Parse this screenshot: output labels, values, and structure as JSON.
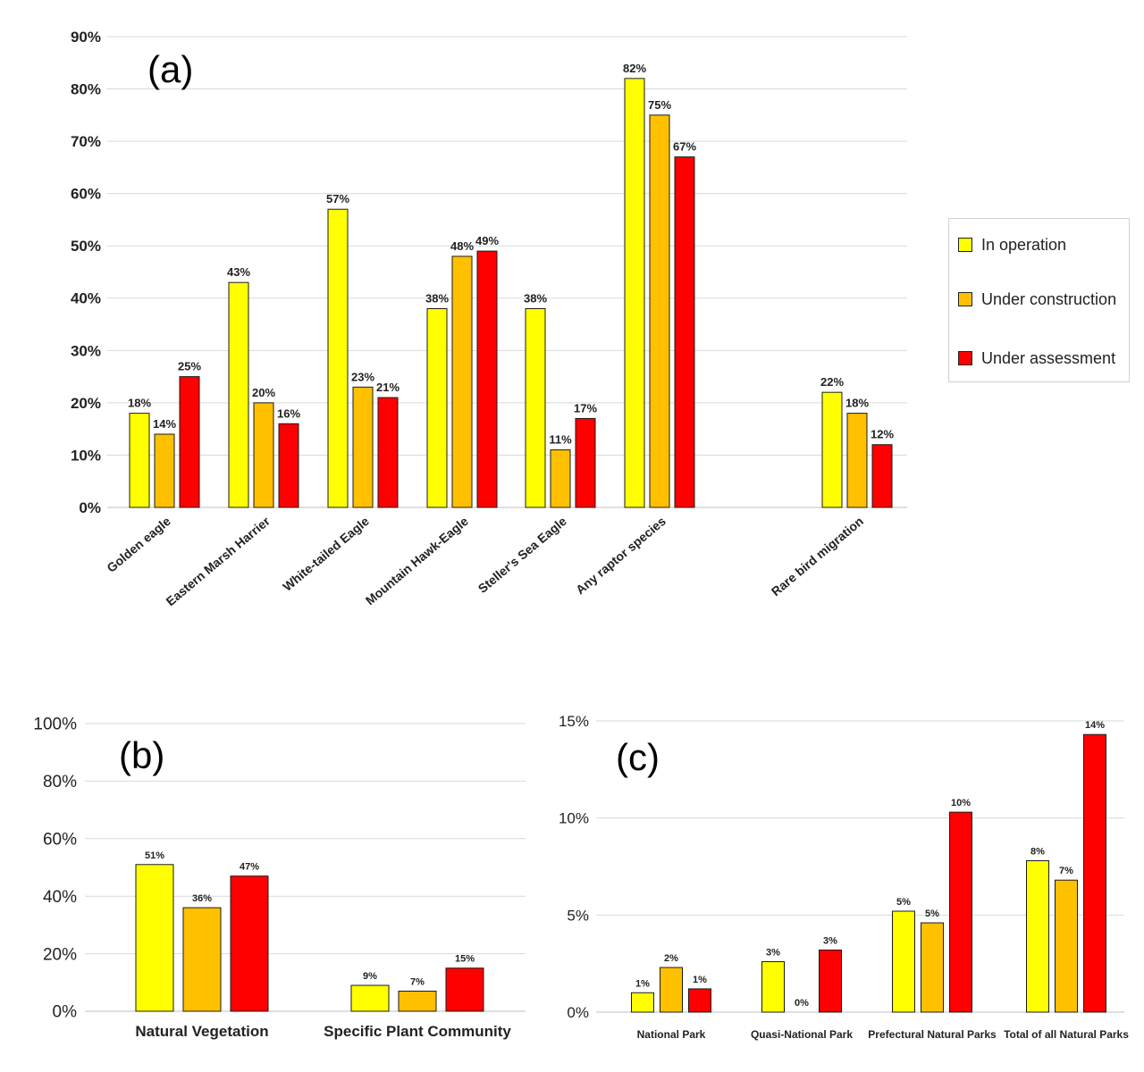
{
  "colors": {
    "in_operation": "#ffff00",
    "under_construction": "#ffc000",
    "under_assessment": "#ff0000",
    "grid": "#d9d9d9",
    "text": "#222222"
  },
  "legend": {
    "items": [
      {
        "label": "In operation",
        "color": "#ffff00"
      },
      {
        "label": "Under construction",
        "color": "#ffc000"
      },
      {
        "label": "Under assessment",
        "color": "#ff0000"
      }
    ],
    "placement": "right of chart (a)"
  },
  "chart_data": [
    {
      "id": "a",
      "panel_label": "(a)",
      "type": "bar",
      "categories": [
        "Golden eagle",
        "Eastern Marsh Harrier",
        "White-tailed Eagle",
        "Mountain Hawk-Eagle",
        "Steller's Sea Eagle",
        "Any raptor species",
        "Rare bird migration"
      ],
      "series": [
        {
          "name": "In operation",
          "color": "#ffff00",
          "values": [
            18,
            43,
            57,
            38,
            38,
            82,
            22
          ],
          "labels": [
            "18%",
            "43%",
            "57%",
            "38%",
            "38%",
            "82%",
            "22%"
          ]
        },
        {
          "name": "Under construction",
          "color": "#ffc000",
          "values": [
            14,
            20,
            23,
            48,
            11,
            75,
            18
          ],
          "labels": [
            "14%",
            "20%",
            "23%",
            "48%",
            "11%",
            "75%",
            "18%"
          ]
        },
        {
          "name": "Under assessment",
          "color": "#ff0000",
          "values": [
            25,
            16,
            21,
            49,
            17,
            67,
            12
          ],
          "labels": [
            "25%",
            "16%",
            "21%",
            "49%",
            "17%",
            "67%",
            "12%"
          ]
        }
      ],
      "yticks": [
        "0%",
        "10%",
        "20%",
        "30%",
        "40%",
        "50%",
        "60%",
        "70%",
        "80%",
        "90%"
      ],
      "ylim": [
        0,
        90
      ],
      "grid": true,
      "xlabel": "",
      "ylabel": ""
    },
    {
      "id": "b",
      "panel_label": "(b)",
      "type": "bar",
      "categories": [
        "Natural Vegetation",
        "Specific Plant Community"
      ],
      "series": [
        {
          "name": "In operation",
          "color": "#ffff00",
          "values": [
            51,
            9
          ],
          "labels": [
            "51%",
            "9%"
          ]
        },
        {
          "name": "Under construction",
          "color": "#ffc000",
          "values": [
            36,
            7
          ],
          "labels": [
            "36%",
            "7%"
          ]
        },
        {
          "name": "Under assessment",
          "color": "#ff0000",
          "values": [
            47,
            15
          ],
          "labels": [
            "47%",
            "15%"
          ]
        }
      ],
      "yticks": [
        "0%",
        "20%",
        "40%",
        "60%",
        "80%",
        "100%"
      ],
      "ylim": [
        0,
        100
      ],
      "grid": true,
      "xlabel": "",
      "ylabel": ""
    },
    {
      "id": "c",
      "panel_label": "(c)",
      "type": "bar",
      "categories": [
        "National Park",
        "Quasi-National Park",
        "Prefectural Natural Parks",
        "Total of all Natural Parks"
      ],
      "series": [
        {
          "name": "In operation",
          "color": "#ffff00",
          "values": [
            1,
            2.6,
            5.2,
            7.8
          ],
          "labels": [
            "1%",
            "3%",
            "5%",
            "8%"
          ]
        },
        {
          "name": "Under construction",
          "color": "#ffc000",
          "values": [
            2.3,
            0,
            4.6,
            6.8
          ],
          "labels": [
            "2%",
            "0%",
            "5%",
            "7%"
          ]
        },
        {
          "name": "Under assessment",
          "color": "#ff0000",
          "values": [
            1.2,
            3.2,
            10.3,
            14.3
          ],
          "labels": [
            "1%",
            "3%",
            "10%",
            "14%"
          ]
        }
      ],
      "yticks": [
        "0%",
        "5%",
        "10%",
        "15%"
      ],
      "ylim": [
        0,
        15
      ],
      "grid": true,
      "xlabel": "",
      "ylabel": ""
    }
  ]
}
